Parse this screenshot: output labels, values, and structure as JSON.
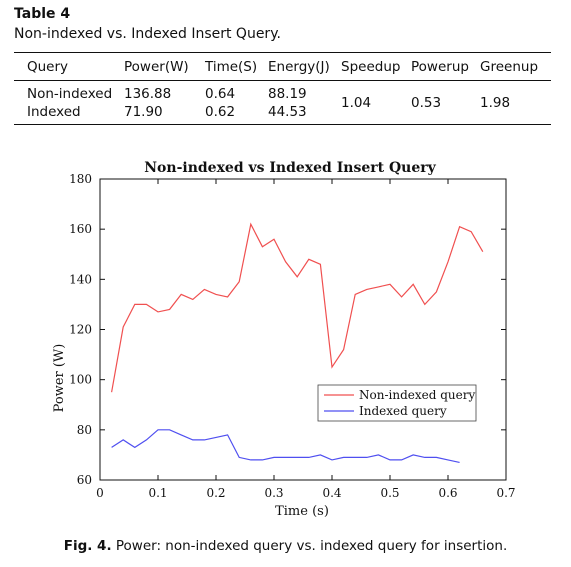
{
  "table": {
    "label": "Table 4",
    "caption": "Non-indexed vs. Indexed Insert Query.",
    "headers": [
      "Query",
      "Power(W)",
      "Time(S)",
      "Energy(J)",
      "Speedup",
      "Powerup",
      "Greenup"
    ],
    "rows": [
      {
        "query": "Non-indexed",
        "power": "136.88",
        "time": "0.64",
        "energy": "88.19"
      },
      {
        "query": "Indexed",
        "power": "71.90",
        "time": "0.62",
        "energy": "44.53"
      }
    ],
    "speedup": "1.04",
    "powerup": "0.53",
    "greenup": "1.98"
  },
  "chart_data": {
    "type": "line",
    "title": "Non-indexed vs Indexed Insert Query",
    "xlabel": "Time (s)",
    "ylabel": "Power (W)",
    "xlim": [
      0,
      0.7
    ],
    "ylim": [
      60,
      180
    ],
    "xticks": [
      "0",
      "0.1",
      "0.2",
      "0.3",
      "0.4",
      "0.5",
      "0.6",
      "0.7"
    ],
    "yticks": [
      "60",
      "80",
      "100",
      "120",
      "140",
      "160",
      "180"
    ],
    "legend_position": "lower-right",
    "series": [
      {
        "name": "Non-indexed query",
        "color": "#f05050",
        "x": [
          0.02,
          0.04,
          0.06,
          0.08,
          0.1,
          0.12,
          0.14,
          0.16,
          0.18,
          0.2,
          0.22,
          0.24,
          0.26,
          0.28,
          0.3,
          0.32,
          0.34,
          0.36,
          0.38,
          0.4,
          0.42,
          0.44,
          0.46,
          0.48,
          0.5,
          0.52,
          0.54,
          0.56,
          0.58,
          0.6,
          0.62,
          0.64,
          0.66
        ],
        "y": [
          95,
          121,
          130,
          130,
          127,
          128,
          134,
          132,
          136,
          134,
          133,
          139,
          162,
          153,
          156,
          147,
          141,
          148,
          146,
          105,
          112,
          134,
          136,
          137,
          138,
          133,
          138,
          130,
          135,
          147,
          161,
          159,
          151
        ]
      },
      {
        "name": "Indexed query",
        "color": "#4f4ff0",
        "x": [
          0.02,
          0.04,
          0.06,
          0.08,
          0.1,
          0.12,
          0.14,
          0.16,
          0.18,
          0.2,
          0.22,
          0.24,
          0.26,
          0.28,
          0.3,
          0.32,
          0.34,
          0.36,
          0.38,
          0.4,
          0.42,
          0.44,
          0.46,
          0.48,
          0.5,
          0.52,
          0.54,
          0.56,
          0.58,
          0.6,
          0.62
        ],
        "y": [
          73,
          76,
          73,
          76,
          80,
          80,
          78,
          76,
          76,
          77,
          78,
          69,
          68,
          68,
          69,
          69,
          69,
          69,
          70,
          68,
          69,
          69,
          69,
          70,
          68,
          68,
          70,
          69,
          69,
          68,
          67
        ]
      }
    ]
  },
  "figure_caption": {
    "label": "Fig. 4.",
    "text": "Power: non-indexed query vs. indexed query for insertion."
  }
}
